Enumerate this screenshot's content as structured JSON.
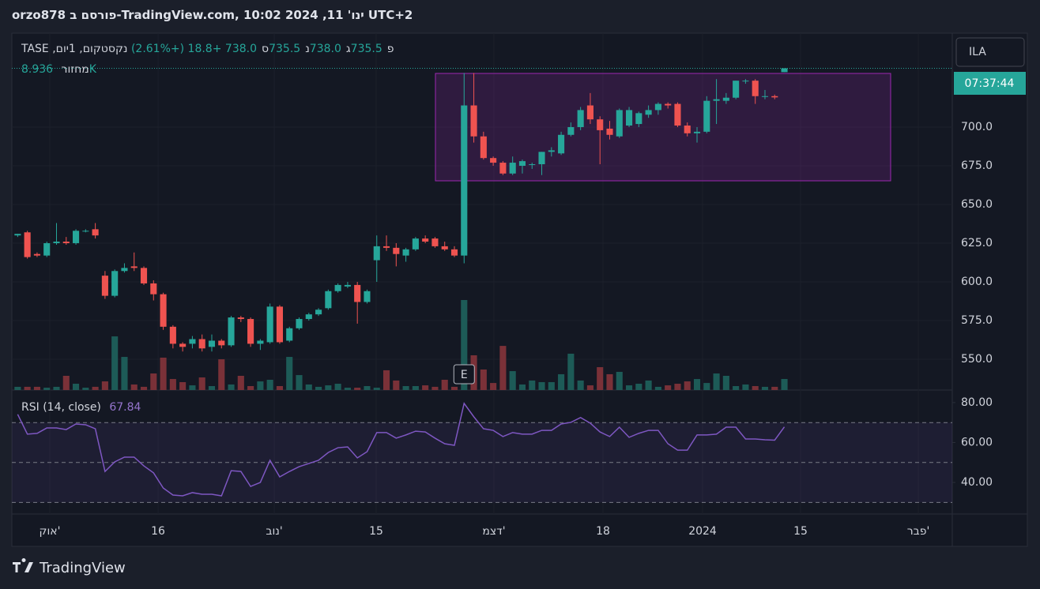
{
  "header": {
    "title": "orzo878 פורסם ב-TradingView.com, ינו' 11, 2024 10:02 UTC+2"
  },
  "chart_data": [
    {
      "type": "candlestick",
      "symbol": "נקסטקום, 1יום, TASE",
      "legend": [
        {
          "letter": "פ",
          "text": "735.5"
        },
        {
          "letter": "ג",
          "text": "738.0"
        },
        {
          "letter": "נ",
          "text": "735.5"
        },
        {
          "letter": "ס",
          "text": "738.0"
        }
      ],
      "change": "+18.8 (+2.61%)",
      "open": [
        630,
        632,
        618,
        617,
        625,
        626,
        625,
        633,
        634,
        604,
        591,
        607,
        610,
        609,
        599,
        592,
        571,
        560,
        560,
        563,
        558,
        562,
        559,
        577,
        576,
        560,
        561,
        584,
        562,
        570,
        576,
        579,
        583,
        594,
        597,
        598,
        587,
        614,
        623,
        622,
        617,
        621,
        628,
        628,
        623,
        621,
        617,
        714,
        694,
        680,
        677,
        670,
        675,
        676,
        676,
        684,
        683,
        695,
        700,
        714,
        705,
        699,
        694,
        701,
        702,
        708,
        711,
        715,
        715,
        701,
        696,
        697,
        717,
        717,
        719,
        730,
        730,
        720,
        720,
        735.5
      ],
      "high": [
        631,
        633,
        619,
        626,
        638,
        629,
        634,
        634,
        638,
        607,
        608,
        612,
        619,
        610,
        601,
        593,
        572,
        561,
        565,
        566,
        566,
        563,
        578,
        578,
        577,
        563,
        586,
        585,
        571,
        577,
        580,
        583,
        595,
        599,
        600,
        600,
        595,
        630,
        630,
        625,
        622,
        629,
        630,
        629,
        626,
        623,
        735,
        735,
        697,
        681,
        678,
        681,
        679,
        677,
        684,
        687,
        697,
        703,
        713,
        722,
        707,
        704,
        712,
        713,
        710,
        714,
        716,
        716,
        716,
        703,
        700,
        720,
        731,
        722,
        730,
        731,
        731,
        724,
        721,
        738
      ],
      "low": [
        629,
        615,
        616,
        616,
        624,
        624,
        624,
        632,
        628,
        589,
        590,
        606,
        607,
        598,
        588,
        569,
        557,
        555,
        557,
        555,
        555,
        557,
        558,
        574,
        558,
        556,
        560,
        560,
        561,
        569,
        575,
        578,
        582,
        593,
        596,
        573,
        586,
        600,
        620,
        610,
        613,
        620,
        625,
        622,
        620,
        616,
        612,
        690,
        679,
        675,
        669,
        669,
        670,
        673,
        669,
        681,
        682,
        694,
        698,
        702,
        676,
        692,
        693,
        700,
        700,
        706,
        708,
        712,
        700,
        694,
        690,
        696,
        702,
        715,
        718,
        728,
        715,
        718,
        718,
        735.5
      ],
      "close": [
        631,
        616,
        617,
        625,
        626,
        625,
        633,
        633,
        630,
        591,
        607,
        609,
        609,
        599,
        592,
        571,
        560,
        558,
        563,
        557,
        562,
        559,
        577,
        576,
        560,
        562,
        584,
        561,
        570,
        576,
        579,
        582,
        594,
        598,
        598,
        587,
        594,
        623,
        622,
        618,
        621,
        628,
        626,
        623,
        621,
        617,
        714,
        694,
        680,
        677,
        670,
        677,
        678,
        676,
        684,
        685,
        695,
        700,
        711,
        705,
        698,
        695,
        711,
        711,
        709,
        711,
        715,
        714,
        701,
        696,
        697,
        717,
        718,
        719,
        730,
        730,
        720,
        720,
        719.2,
        738
      ],
      "colors": {
        "up": "#26a69a",
        "down": "#ef5350",
        "volume_up": "#1d5b57",
        "volume_down": "#7a3138"
      },
      "volume": {
        "name": "מחזור",
        "last_label": "8.936K",
        "values": [
          2.6,
          2.6,
          2.6,
          1.9,
          2.6,
          11.5,
          5.1,
          1.9,
          2.6,
          7,
          43.4,
          26.8,
          4.5,
          2.6,
          13.4,
          26.2,
          8.9,
          6.4,
          3.8,
          10.2,
          3.2,
          24.9,
          4.5,
          11.5,
          3.2,
          7,
          8.3,
          3.2,
          26.8,
          12.1,
          4.5,
          2.6,
          3.8,
          5.1,
          1.9,
          1.9,
          3.2,
          1.9,
          16,
          7.7,
          3.2,
          3.2,
          3.8,
          2.6,
          8.3,
          2.6,
          72.8,
          28.1,
          16.6,
          5.7,
          35.7,
          15.3,
          4.5,
          7.7,
          6.4,
          6.4,
          12.8,
          29.4,
          7.7,
          3.8,
          18.5,
          12.8,
          14.7,
          3.8,
          5.1,
          7.7,
          2.6,
          3.8,
          5.1,
          7,
          8.9,
          5.7,
          13.4,
          11.5,
          3.2,
          4.5,
          3.2,
          2.6,
          2.6,
          8.936
        ]
      },
      "earnings_marker": "E",
      "ylim": [
        530.1,
        760.7
      ],
      "yticks": [
        {
          "value": 550,
          "label": "550.0"
        },
        {
          "value": 575,
          "label": "575.0"
        },
        {
          "value": 600,
          "label": "600.0"
        },
        {
          "value": 625,
          "label": "625.0"
        },
        {
          "value": 650,
          "label": "650.0"
        },
        {
          "value": 675,
          "label": "675.0"
        },
        {
          "value": 700,
          "label": "700.0"
        }
      ],
      "xlim": [
        -0.6,
        96.3
      ],
      "xticks": [
        {
          "value": 3.31,
          "label": "אוק'"
        },
        {
          "value": 14.47,
          "label": "16"
        },
        {
          "value": 26.44,
          "label": "נוב'"
        },
        {
          "value": 36.94,
          "label": "15"
        },
        {
          "value": 49.07,
          "label": "דצמ'"
        },
        {
          "value": 60.31,
          "label": "18"
        },
        {
          "value": 70.57,
          "label": "2024"
        },
        {
          "value": 80.67,
          "label": "15"
        },
        {
          "value": 92.8,
          "label": "פבר'"
        }
      ],
      "grid": true
    },
    {
      "type": "line",
      "title": "RSI (14, close)",
      "color": "#7e57c2",
      "values": [
        74.1,
        64.2,
        64.6,
        67.3,
        67.3,
        66.5,
        69.3,
        68.9,
        66.9,
        45.5,
        50.3,
        52.7,
        52.7,
        48.3,
        44.8,
        37.2,
        33.7,
        33.3,
        34.9,
        34.1,
        34.1,
        33.3,
        45.9,
        45.5,
        38,
        40,
        51.1,
        42.8,
        45.5,
        47.9,
        49.5,
        51.1,
        55,
        57.4,
        57.8,
        52.3,
        55.4,
        65,
        65,
        62.2,
        63.8,
        65.7,
        65.3,
        62.2,
        59.4,
        58.6,
        79.6,
        72.9,
        66.9,
        66.1,
        63,
        65,
        64.2,
        64.2,
        66.1,
        66.1,
        69.3,
        70.1,
        72.5,
        69.7,
        65.3,
        63,
        67.7,
        62.6,
        64.6,
        66.1,
        66.1,
        59.4,
        56.2,
        56.2,
        63.8,
        63.8,
        64.2,
        67.7,
        67.7,
        61.8,
        61.8,
        61.4,
        61.2,
        67.84
      ],
      "levels": [
        70,
        50,
        30
      ],
      "ylim": [
        24.2,
        86.3
      ],
      "yticks": [
        {
          "value": 40,
          "label": "40.00"
        },
        {
          "value": 60,
          "label": "60.00"
        },
        {
          "value": 80,
          "label": "80.00"
        }
      ]
    }
  ],
  "price_axis": {
    "currency": "ILA",
    "countdown": "07:37:44"
  },
  "footer": {
    "brand": "TradingView"
  }
}
